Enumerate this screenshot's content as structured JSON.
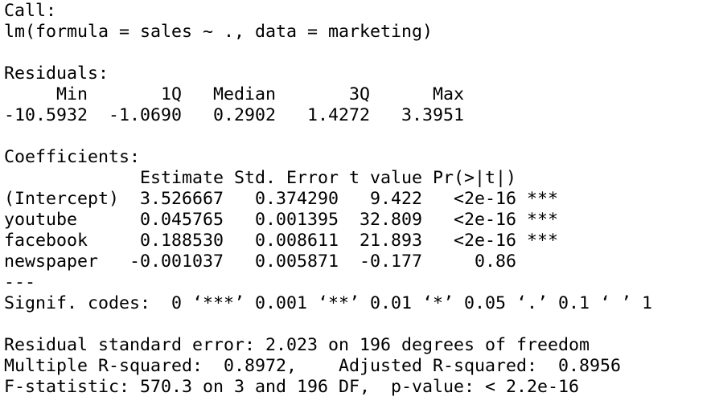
{
  "call": {
    "label": "Call:",
    "formula": "lm(formula = sales ~ ., data = marketing)"
  },
  "residuals": {
    "label": "Residuals:",
    "headers": [
      "Min",
      "1Q",
      "Median",
      "3Q",
      "Max"
    ],
    "values": [
      "-10.5932",
      "-1.0690",
      "0.2902",
      "1.4272",
      "3.3951"
    ]
  },
  "coefficients": {
    "label": "Coefficients:",
    "headers": [
      "Estimate",
      "Std. Error",
      "t value",
      "Pr(>|t|)"
    ],
    "rows": [
      {
        "name": "(Intercept)",
        "cells": [
          "3.526667",
          "0.374290",
          "9.422",
          "<2e-16"
        ],
        "signif": "***"
      },
      {
        "name": "youtube",
        "cells": [
          "0.045765",
          "0.001395",
          "32.809",
          "<2e-16"
        ],
        "signif": "***"
      },
      {
        "name": "facebook",
        "cells": [
          "0.188530",
          "0.008611",
          "21.893",
          "<2e-16"
        ],
        "signif": "***"
      },
      {
        "name": "newspaper",
        "cells": [
          "-0.001037",
          "0.005871",
          "-0.177",
          "0.86"
        ]
      }
    ]
  },
  "separator": "---",
  "signif_codes": "Signif. codes:  0 ‘***’ 0.001 ‘**’ 0.01 ‘*’ 0.05 ‘.’ 0.1 ‘ ’ 1",
  "summary": [
    "Residual standard error: 2.023 on 196 degrees of freedom",
    "Multiple R-squared:  0.8972,    Adjusted R-squared:  0.8956",
    "F-statistic: 570.3 on 3 and 196 DF,  p-value: < 2.2e-16"
  ]
}
